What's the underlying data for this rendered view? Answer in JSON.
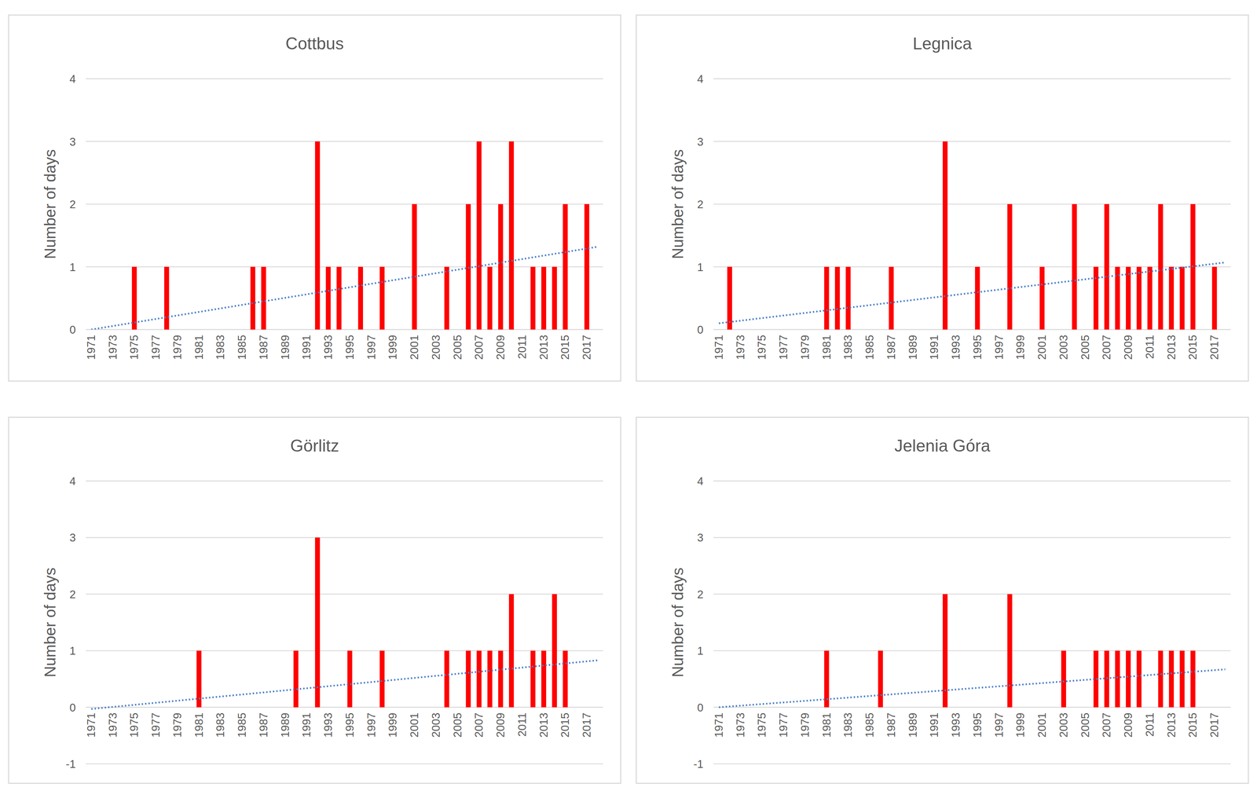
{
  "chart_data": [
    {
      "type": "bar",
      "title": "Cottbus",
      "ylabel": "Number of days",
      "categories": [
        "1971",
        null,
        "1973",
        null,
        "1975",
        null,
        "1977",
        null,
        "1979",
        null,
        "1981",
        null,
        "1983",
        null,
        "1985",
        null,
        "1987",
        null,
        "1989",
        null,
        "1991",
        null,
        "1993",
        null,
        "1995",
        null,
        "1997",
        null,
        "1999",
        null,
        "2001",
        null,
        "2003",
        null,
        "2005",
        null,
        "2007",
        null,
        "2009",
        null,
        "2011",
        null,
        "2013",
        null,
        "2015",
        null,
        "2017",
        null
      ],
      "values": [
        0,
        0,
        0,
        0,
        1,
        0,
        0,
        1,
        0,
        0,
        0,
        0,
        0,
        0,
        0,
        1,
        1,
        0,
        0,
        0,
        0,
        3,
        1,
        1,
        0,
        1,
        0,
        1,
        0,
        0,
        2,
        0,
        0,
        1,
        0,
        2,
        3,
        1,
        2,
        3,
        0,
        1,
        1,
        1,
        2,
        0,
        2,
        0
      ],
      "trend": [
        0,
        1.32
      ],
      "color": "#ff0000",
      "ylim": [
        0,
        4
      ],
      "yticks": [
        0,
        1,
        2,
        3,
        4
      ],
      "grid": true
    },
    {
      "type": "bar",
      "title": "Legnica",
      "ylabel": "Number of days",
      "categories": [
        "1971",
        null,
        "1973",
        null,
        "1975",
        null,
        "1977",
        null,
        "1979",
        null,
        "1981",
        null,
        "1983",
        null,
        "1985",
        null,
        "1987",
        null,
        "1989",
        null,
        "1991",
        null,
        "1993",
        null,
        "1995",
        null,
        "1997",
        null,
        "1999",
        null,
        "2001",
        null,
        "2003",
        null,
        "2005",
        null,
        "2007",
        null,
        "2009",
        null,
        "2011",
        null,
        "2013",
        null,
        "2015",
        null,
        "2017",
        null
      ],
      "values": [
        0,
        1,
        0,
        0,
        0,
        0,
        0,
        0,
        0,
        0,
        1,
        1,
        1,
        0,
        0,
        0,
        1,
        0,
        0,
        0,
        0,
        3,
        0,
        0,
        1,
        0,
        0,
        2,
        0,
        0,
        1,
        0,
        0,
        2,
        0,
        1,
        2,
        1,
        1,
        1,
        1,
        2,
        1,
        1,
        2,
        0,
        1,
        0
      ],
      "trend": [
        0.1,
        1.07
      ],
      "color": "#ff0000",
      "ylim": [
        0,
        4
      ],
      "yticks": [
        0,
        1,
        2,
        3,
        4
      ],
      "grid": true
    },
    {
      "type": "bar",
      "title": "Görlitz",
      "ylabel": "Number of days",
      "categories": [
        "1971",
        null,
        "1973",
        null,
        "1975",
        null,
        "1977",
        null,
        "1979",
        null,
        "1981",
        null,
        "1983",
        null,
        "1985",
        null,
        "1987",
        null,
        "1989",
        null,
        "1991",
        null,
        "1993",
        null,
        "1995",
        null,
        "1997",
        null,
        "1999",
        null,
        "2001",
        null,
        "2003",
        null,
        "2005",
        null,
        "2007",
        null,
        "2009",
        null,
        "2011",
        null,
        "2013",
        null,
        "2015",
        null,
        "2017",
        null
      ],
      "values": [
        0,
        0,
        0,
        0,
        0,
        0,
        0,
        0,
        0,
        0,
        1,
        0,
        0,
        0,
        0,
        0,
        0,
        0,
        0,
        1,
        0,
        3,
        0,
        0,
        1,
        0,
        0,
        1,
        0,
        0,
        0,
        0,
        0,
        1,
        0,
        1,
        1,
        1,
        1,
        2,
        0,
        1,
        1,
        2,
        1,
        0,
        0,
        0
      ],
      "trend": [
        -0.03,
        0.83
      ],
      "color": "#ff0000",
      "ylim": [
        -1,
        4
      ],
      "yticks": [
        -1,
        0,
        1,
        2,
        3,
        4
      ],
      "grid": true
    },
    {
      "type": "bar",
      "title": "Jelenia Góra",
      "ylabel": "Number of days",
      "categories": [
        "1971",
        null,
        "1973",
        null,
        "1975",
        null,
        "1977",
        null,
        "1979",
        null,
        "1981",
        null,
        "1983",
        null,
        "1985",
        null,
        "1987",
        null,
        "1989",
        null,
        "1991",
        null,
        "1993",
        null,
        "1995",
        null,
        "1997",
        null,
        "1999",
        null,
        "2001",
        null,
        "2003",
        null,
        "2005",
        null,
        "2007",
        null,
        "2009",
        null,
        "2011",
        null,
        "2013",
        null,
        "2015",
        null,
        "2017",
        null
      ],
      "values": [
        0,
        0,
        0,
        0,
        0,
        0,
        0,
        0,
        0,
        0,
        1,
        0,
        0,
        0,
        0,
        1,
        0,
        0,
        0,
        0,
        0,
        2,
        0,
        0,
        0,
        0,
        0,
        2,
        0,
        0,
        0,
        0,
        1,
        0,
        0,
        1,
        1,
        1,
        1,
        1,
        0,
        1,
        1,
        1,
        1,
        0,
        0,
        0
      ],
      "trend": [
        0,
        0.67
      ],
      "color": "#ff0000",
      "ylim": [
        -1,
        4
      ],
      "yticks": [
        -1,
        0,
        1,
        2,
        3,
        4
      ],
      "grid": true
    }
  ]
}
